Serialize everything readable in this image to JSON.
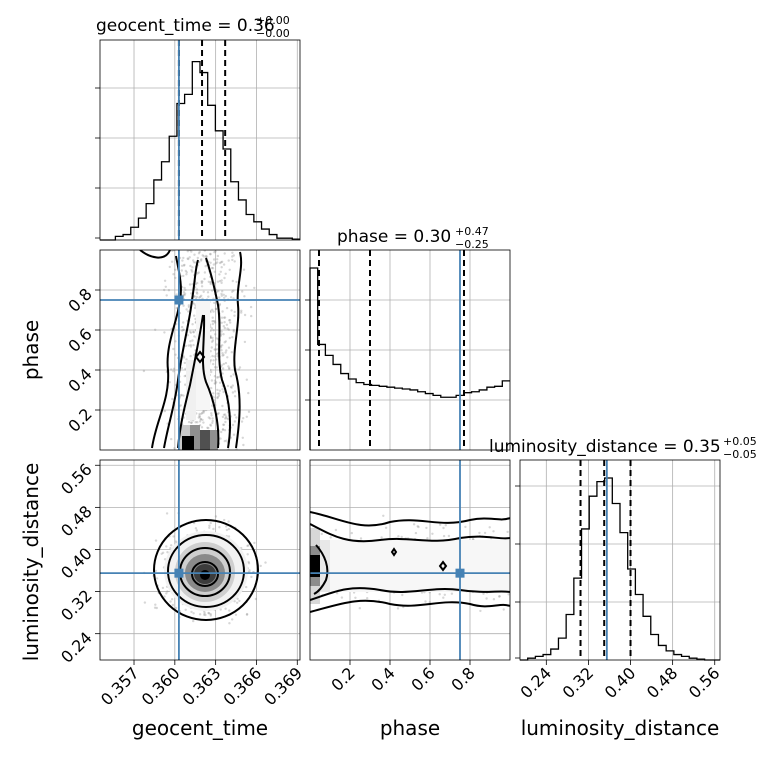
{
  "chart_data": {
    "type": "corner",
    "parameters": [
      "geocent_time",
      "phase",
      "luminosity_distance"
    ],
    "truths": {
      "geocent_time": 0.3603,
      "phase": 0.75,
      "luminosity_distance": 0.355
    },
    "ranges": {
      "geocent_time": [
        0.3545,
        0.3692
      ],
      "phase": [
        0.0,
        1.0
      ],
      "luminosity_distance": [
        0.19,
        0.57
      ]
    },
    "ticks": {
      "geocent_time": [
        "0.357",
        "0.360",
        "0.363",
        "0.366",
        "0.369"
      ],
      "phase_x": [
        "0.2",
        "0.4",
        "0.6",
        "0.8"
      ],
      "phase_y": [
        "0.2",
        "0.4",
        "0.6",
        "0.8"
      ],
      "luminosity_distance": [
        "0.24",
        "0.32",
        "0.40",
        "0.48",
        "0.56"
      ]
    },
    "axis_labels": {
      "geocent_time": "geocent_time",
      "phase": "phase",
      "luminosity_distance": "luminosity_distance"
    },
    "titles": [
      {
        "param": "geocent_time",
        "name": "geocent_time",
        "median": "0.36",
        "plus": "+0.00",
        "minus": "−0.00"
      },
      {
        "param": "phase",
        "name": "phase",
        "median": "0.30",
        "plus": "+0.47",
        "minus": "−0.25"
      },
      {
        "param": "luminosity_distance",
        "name": "luminosity_distance",
        "median": "0.35",
        "plus": "+0.05",
        "minus": "−0.05"
      }
    ],
    "quantile_lines": {
      "geocent_time": [
        0.3603,
        0.362,
        0.3637
      ],
      "phase": [
        0.045,
        0.3,
        0.77
      ],
      "luminosity_distance": [
        0.305,
        0.35,
        0.4
      ]
    },
    "histograms": {
      "geocent_time": {
        "range": [
          0.3545,
          0.3692
        ],
        "counts": [
          0,
          0,
          0.02,
          0.03,
          0.07,
          0.12,
          0.2,
          0.33,
          0.43,
          0.57,
          0.75,
          0.8,
          0.98,
          0.92,
          0.74,
          0.6,
          0.5,
          0.32,
          0.22,
          0.14,
          0.1,
          0.06,
          0.03,
          0.01,
          0.01,
          0.005
        ]
      },
      "phase": {
        "range": [
          0.0,
          1.0
        ],
        "counts": [
          1.0,
          0.58,
          0.52,
          0.47,
          0.42,
          0.39,
          0.37,
          0.36,
          0.355,
          0.35,
          0.345,
          0.34,
          0.335,
          0.33,
          0.32,
          0.31,
          0.3,
          0.29,
          0.29,
          0.3,
          0.315,
          0.32,
          0.33,
          0.345,
          0.35,
          0.38
        ]
      },
      "luminosity_distance": {
        "range": [
          0.19,
          0.57
        ],
        "counts": [
          0,
          0.01,
          0.02,
          0.03,
          0.06,
          0.12,
          0.25,
          0.45,
          0.72,
          0.9,
          0.98,
          1.0,
          0.86,
          0.7,
          0.5,
          0.36,
          0.24,
          0.14,
          0.08,
          0.05,
          0.03,
          0.02,
          0.01,
          0.005,
          0,
          0
        ]
      }
    },
    "truth_points": [
      {
        "x_param": "geocent_time",
        "y_param": "phase",
        "x": 0.3603,
        "y": 0.75
      },
      {
        "x_param": "geocent_time",
        "y_param": "luminosity_distance",
        "x": 0.3603,
        "y": 0.355
      },
      {
        "x_param": "phase",
        "y_param": "luminosity_distance",
        "x": 0.75,
        "y": 0.355
      }
    ],
    "colors": {
      "truth": "#4682b4",
      "hist": "#000000",
      "density": "#000000",
      "scatter": "#8c8c8c"
    }
  }
}
